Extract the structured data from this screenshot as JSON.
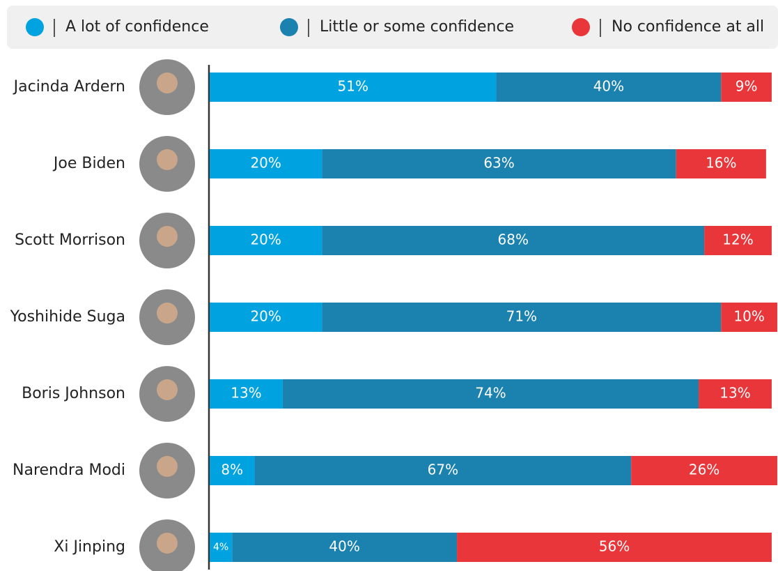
{
  "chart_data": {
    "type": "stacked-bar-horizontal",
    "categories": [
      "Jacinda Ardern",
      "Joe Biden",
      "Scott Morrison",
      "Yoshihide Suga",
      "Boris Johnson",
      "Narendra Modi",
      "Xi Jinping"
    ],
    "series": [
      {
        "name": "A lot of confidence",
        "color": "#00a3e0",
        "values": [
          51,
          20,
          20,
          20,
          13,
          8,
          4
        ],
        "value_labels": [
          "51%",
          "20%",
          "20%",
          "20%",
          "13%",
          "8%",
          "4%"
        ]
      },
      {
        "name": "Little or some confidence",
        "color": "#1b82b0",
        "values": [
          40,
          63,
          68,
          71,
          74,
          67,
          40
        ],
        "value_labels": [
          "40%",
          "63%",
          "68%",
          "71%",
          "74%",
          "67%",
          "40%"
        ]
      },
      {
        "name": "No confidence at all",
        "color": "#e8363a",
        "values": [
          9,
          16,
          12,
          10,
          13,
          26,
          56
        ],
        "value_labels": [
          "9%",
          "16%",
          "12%",
          "10%",
          "13%",
          "26%",
          "56%"
        ]
      }
    ]
  }
}
